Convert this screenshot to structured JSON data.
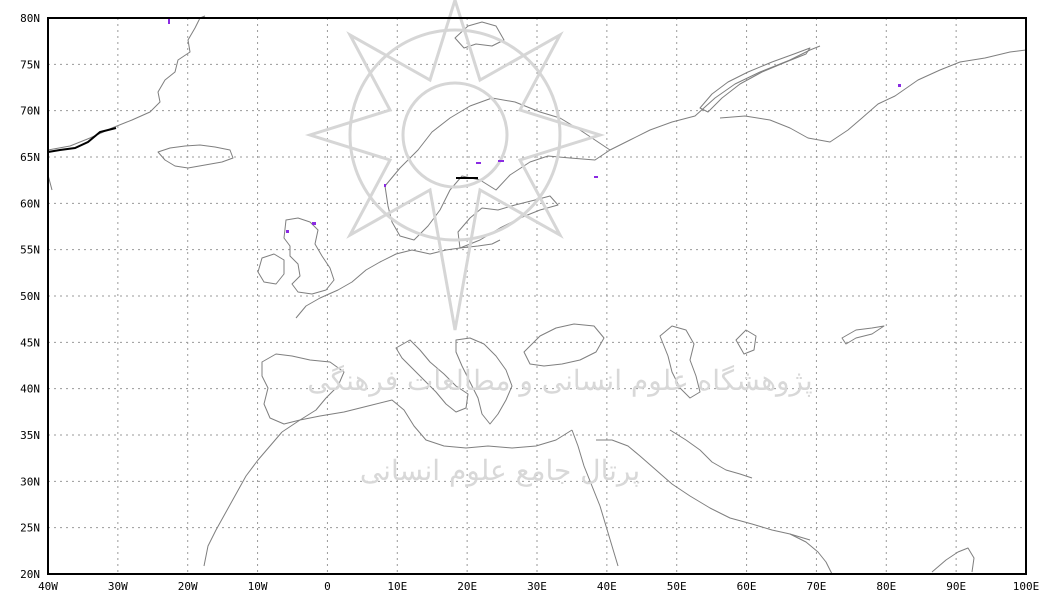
{
  "map": {
    "x_ticks": [
      "40W",
      "30W",
      "20W",
      "10W",
      "0",
      "10E",
      "20E",
      "30E",
      "40E",
      "50E",
      "60E",
      "70E",
      "80E",
      "90E",
      "100E"
    ],
    "y_ticks": [
      "80N",
      "75N",
      "70N",
      "65N",
      "60N",
      "55N",
      "50N",
      "45N",
      "40N",
      "35N",
      "30N",
      "25N",
      "20N"
    ],
    "lon_range": [
      -40,
      100
    ],
    "lat_range": [
      20,
      80
    ],
    "grid": true,
    "grid_style": "dotted",
    "highlight_color": "#8a2be2",
    "coastline_color": "#7f7f7f"
  },
  "watermark": {
    "line1": "پژوهشگاه علوم انسانی و مطالعات فرهنگی",
    "line2": "پرتال جامع علوم انسانی"
  }
}
